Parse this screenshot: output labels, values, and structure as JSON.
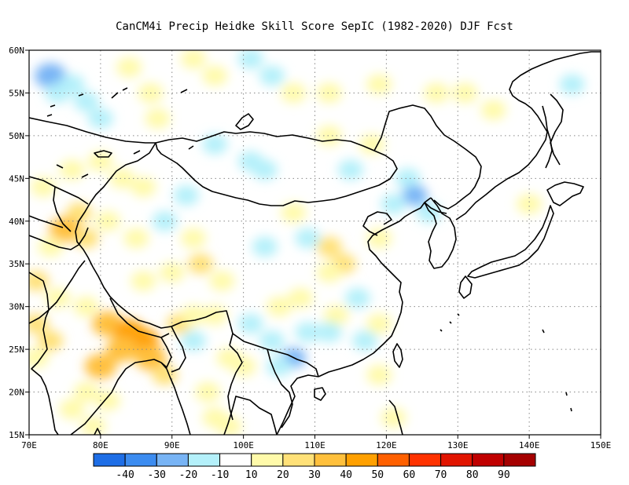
{
  "title": "CanCM4i Precip Heidke Skill Score SepIC (1982-2020) DJF Fcst",
  "map": {
    "lon_range": [
      70,
      150
    ],
    "lat_range": [
      15,
      60
    ],
    "lon_ticks": [
      "70E",
      "80E",
      "90E",
      "100E",
      "110E",
      "120E",
      "130E",
      "140E",
      "150E"
    ],
    "lat_ticks": [
      "15N",
      "20N",
      "25N",
      "30N",
      "35N",
      "40N",
      "45N",
      "50N",
      "55N",
      "60N"
    ],
    "gridlines": "dotted"
  },
  "colorbar": {
    "labels": [
      "-40",
      "-30",
      "-20",
      "-10",
      "10",
      "20",
      "30",
      "40",
      "50",
      "60",
      "70",
      "80",
      "90"
    ],
    "colors": [
      "#1e6ee6",
      "#3c8cf0",
      "#78b4f5",
      "#b4f0fa",
      "#ffffff",
      "#fffaaa",
      "#ffe178",
      "#ffc03c",
      "#ffa000",
      "#ff6000",
      "#ff3200",
      "#e11400",
      "#c00000",
      "#a50000"
    ]
  },
  "chart_data": {
    "type": "heatmap",
    "title": "CanCM4i Precip Heidke Skill Score SepIC (1982-2020) DJF Fcst",
    "x_range": [
      70,
      150
    ],
    "y_range": [
      15,
      60
    ],
    "levels": [
      -40,
      -30,
      -20,
      -10,
      10,
      20,
      30,
      40,
      50,
      60,
      70,
      80,
      90
    ],
    "cells": [
      {
        "lon": 73,
        "lat": 57,
        "v": -30
      },
      {
        "lon": 76,
        "lat": 56,
        "v": -20
      },
      {
        "lon": 74,
        "lat": 55,
        "v": -15
      },
      {
        "lon": 78,
        "lat": 54,
        "v": -15
      },
      {
        "lon": 80,
        "lat": 52,
        "v": -12
      },
      {
        "lon": 84,
        "lat": 58,
        "v": 15
      },
      {
        "lon": 87,
        "lat": 55,
        "v": 18
      },
      {
        "lon": 88,
        "lat": 52,
        "v": 12
      },
      {
        "lon": 93,
        "lat": 59,
        "v": 15
      },
      {
        "lon": 96,
        "lat": 57,
        "v": 12
      },
      {
        "lon": 101,
        "lat": 59,
        "v": -12
      },
      {
        "lon": 104,
        "lat": 57,
        "v": -15
      },
      {
        "lon": 107,
        "lat": 55,
        "v": 12
      },
      {
        "lon": 112,
        "lat": 55,
        "v": 12
      },
      {
        "lon": 119,
        "lat": 56,
        "v": 15
      },
      {
        "lon": 127,
        "lat": 55,
        "v": 12
      },
      {
        "lon": 131,
        "lat": 55,
        "v": 15
      },
      {
        "lon": 135,
        "lat": 53,
        "v": 18
      },
      {
        "lon": 146,
        "lat": 56,
        "v": -12
      },
      {
        "lon": 103,
        "lat": 46,
        "v": -20
      },
      {
        "lon": 101,
        "lat": 47,
        "v": -15
      },
      {
        "lon": 96,
        "lat": 49,
        "v": -12
      },
      {
        "lon": 115,
        "lat": 46,
        "v": -12
      },
      {
        "lon": 112,
        "lat": 50,
        "v": 12
      },
      {
        "lon": 118,
        "lat": 49,
        "v": 18
      },
      {
        "lon": 123,
        "lat": 45,
        "v": -15
      },
      {
        "lon": 124,
        "lat": 43,
        "v": -25
      },
      {
        "lon": 121,
        "lat": 42,
        "v": -15
      },
      {
        "lon": 126,
        "lat": 41,
        "v": -12
      },
      {
        "lon": 72,
        "lat": 44,
        "v": 12
      },
      {
        "lon": 76,
        "lat": 46,
        "v": 12
      },
      {
        "lon": 80,
        "lat": 47,
        "v": 18
      },
      {
        "lon": 83,
        "lat": 45,
        "v": 15
      },
      {
        "lon": 86,
        "lat": 44,
        "v": 12
      },
      {
        "lon": 77,
        "lat": 41,
        "v": 22
      },
      {
        "lon": 75,
        "lat": 39,
        "v": 30
      },
      {
        "lon": 78,
        "lat": 38,
        "v": 25
      },
      {
        "lon": 81,
        "lat": 40,
        "v": 15
      },
      {
        "lon": 73,
        "lat": 37,
        "v": 15
      },
      {
        "lon": 85,
        "lat": 38,
        "v": 12
      },
      {
        "lon": 89,
        "lat": 40,
        "v": -15
      },
      {
        "lon": 92,
        "lat": 43,
        "v": -12
      },
      {
        "lon": 93,
        "lat": 38,
        "v": 15
      },
      {
        "lon": 94,
        "lat": 35,
        "v": 22
      },
      {
        "lon": 90,
        "lat": 34,
        "v": 18
      },
      {
        "lon": 86,
        "lat": 33,
        "v": 15
      },
      {
        "lon": 97,
        "lat": 33,
        "v": 12
      },
      {
        "lon": 107,
        "lat": 41,
        "v": 18
      },
      {
        "lon": 112,
        "lat": 37,
        "v": 20
      },
      {
        "lon": 114,
        "lat": 35,
        "v": 25
      },
      {
        "lon": 112,
        "lat": 34,
        "v": 18
      },
      {
        "lon": 119,
        "lat": 38,
        "v": 12
      },
      {
        "lon": 103,
        "lat": 37,
        "v": -12
      },
      {
        "lon": 109,
        "lat": 38,
        "v": -12
      },
      {
        "lon": 105,
        "lat": 30,
        "v": 15
      },
      {
        "lon": 108,
        "lat": 31,
        "v": 12
      },
      {
        "lon": 113,
        "lat": 29,
        "v": 12
      },
      {
        "lon": 119,
        "lat": 28,
        "v": 15
      },
      {
        "lon": 116,
        "lat": 31,
        "v": -12
      },
      {
        "lon": 109,
        "lat": 27,
        "v": -18
      },
      {
        "lon": 112,
        "lat": 27,
        "v": -15
      },
      {
        "lon": 117,
        "lat": 26,
        "v": -12
      },
      {
        "lon": 101,
        "lat": 28,
        "v": -12
      },
      {
        "lon": 104,
        "lat": 26,
        "v": -15
      },
      {
        "lon": 107,
        "lat": 24,
        "v": -25
      },
      {
        "lon": 105,
        "lat": 23,
        "v": -15
      },
      {
        "lon": 100,
        "lat": 23,
        "v": 12
      },
      {
        "lon": 98,
        "lat": 24,
        "v": 18
      },
      {
        "lon": 93,
        "lat": 26,
        "v": -12
      },
      {
        "lon": 71,
        "lat": 33,
        "v": 22
      },
      {
        "lon": 74,
        "lat": 31,
        "v": 15
      },
      {
        "lon": 71,
        "lat": 28,
        "v": 25
      },
      {
        "lon": 73,
        "lat": 26,
        "v": 20
      },
      {
        "lon": 71,
        "lat": 24,
        "v": 12
      },
      {
        "lon": 78,
        "lat": 30,
        "v": 15
      },
      {
        "lon": 81,
        "lat": 28,
        "v": 35
      },
      {
        "lon": 84,
        "lat": 27,
        "v": 45
      },
      {
        "lon": 86,
        "lat": 26,
        "v": 40
      },
      {
        "lon": 83,
        "lat": 25,
        "v": 35
      },
      {
        "lon": 80,
        "lat": 23,
        "v": 30
      },
      {
        "lon": 87,
        "lat": 24,
        "v": 30
      },
      {
        "lon": 89,
        "lat": 22,
        "v": 22
      },
      {
        "lon": 78,
        "lat": 20,
        "v": 18
      },
      {
        "lon": 81,
        "lat": 19,
        "v": 15
      },
      {
        "lon": 76,
        "lat": 18,
        "v": 15
      },
      {
        "lon": 79,
        "lat": 16,
        "v": 18
      },
      {
        "lon": 91,
        "lat": 28,
        "v": 25
      },
      {
        "lon": 93,
        "lat": 29,
        "v": 18
      },
      {
        "lon": 96,
        "lat": 29,
        "v": 12
      },
      {
        "lon": 95,
        "lat": 20,
        "v": 12
      },
      {
        "lon": 96,
        "lat": 17,
        "v": 15
      },
      {
        "lon": 98,
        "lat": 16,
        "v": 12
      },
      {
        "lon": 119,
        "lat": 22,
        "v": 12
      },
      {
        "lon": 121,
        "lat": 17,
        "v": 15
      },
      {
        "lon": 140,
        "lat": 42,
        "v": 12
      }
    ]
  }
}
